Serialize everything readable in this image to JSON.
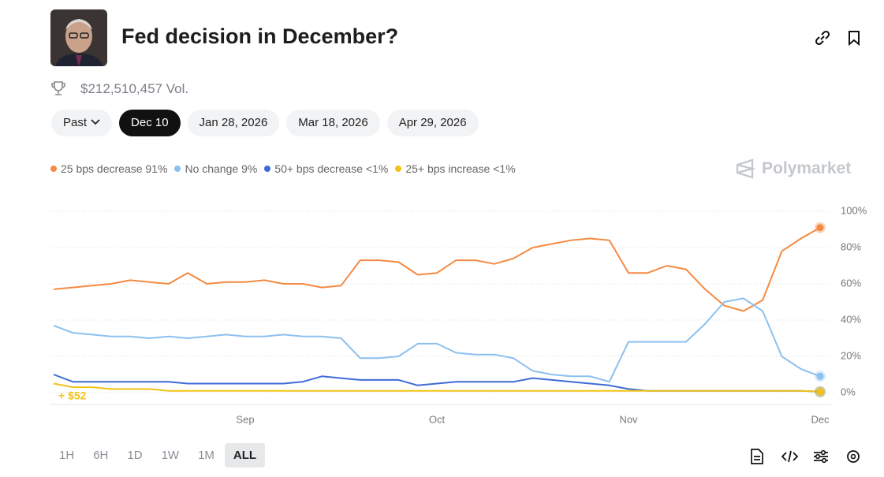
{
  "header": {
    "title": "Fed decision in December?",
    "volume": "$212,510,457 Vol."
  },
  "date_tabs": [
    "Past",
    "Dec 10",
    "Jan 28, 2026",
    "Mar 18, 2026",
    "Apr 29, 2026"
  ],
  "brand": "Polymarket",
  "time_ranges": [
    "1H",
    "6H",
    "1D",
    "1W",
    "1M",
    "ALL"
  ],
  "chart_data": {
    "type": "line",
    "categories": [
      null,
      null,
      null,
      null,
      null,
      null,
      null,
      null,
      null,
      null,
      "Sep",
      null,
      null,
      null,
      null,
      null,
      null,
      null,
      null,
      null,
      "Oct",
      null,
      null,
      null,
      null,
      null,
      null,
      null,
      null,
      null,
      "Nov",
      null,
      null,
      null,
      null,
      null,
      null,
      null,
      null,
      null,
      "Dec"
    ],
    "series": [
      {
        "name": "25 bps decrease",
        "color": "#f58a42",
        "current": {
          "value": 91,
          "label": "91%"
        },
        "values": [
          57,
          58,
          59,
          60,
          62,
          61,
          60,
          66,
          60,
          61,
          61,
          62,
          60,
          60,
          58,
          59,
          73,
          73,
          72,
          65,
          66,
          73,
          73,
          71,
          74,
          80,
          82,
          84,
          85,
          84,
          66,
          66,
          70,
          68,
          57,
          48,
          45,
          51,
          78,
          85,
          91
        ]
      },
      {
        "name": "No change",
        "color": "#8cc0ef",
        "current": {
          "value": 9,
          "label": "9%"
        },
        "values": [
          37,
          33,
          32,
          31,
          31,
          30,
          31,
          30,
          31,
          32,
          31,
          31,
          32,
          31,
          31,
          30,
          19,
          19,
          20,
          27,
          27,
          22,
          21,
          21,
          19,
          12,
          10,
          9,
          9,
          6,
          28,
          28,
          28,
          28,
          38,
          50,
          52,
          45,
          20,
          13,
          9
        ]
      },
      {
        "name": "50+ bps decrease",
        "color": "#3e6bd6",
        "current": {
          "value": 0.5,
          "label": "<1%"
        },
        "values": [
          10,
          6,
          6,
          6,
          6,
          6,
          6,
          5,
          5,
          5,
          5,
          5,
          5,
          6,
          9,
          8,
          7,
          7,
          7,
          4,
          5,
          6,
          6,
          6,
          6,
          8,
          7,
          6,
          5,
          4,
          2,
          1,
          1,
          1,
          1,
          1,
          1,
          1,
          1,
          1,
          0.5
        ]
      },
      {
        "name": "25+ bps increase",
        "color": "#f2c314",
        "current": {
          "value": 0.5,
          "label": "<1%"
        },
        "values": [
          5,
          3,
          3,
          2,
          2,
          2,
          1,
          1,
          1,
          1,
          1,
          1,
          1,
          1,
          1,
          1,
          1,
          1,
          1,
          1,
          1,
          1,
          1,
          1,
          1,
          1,
          1,
          1,
          1,
          1,
          1,
          1,
          1,
          1,
          1,
          1,
          1,
          1,
          1,
          1,
          0.5
        ]
      }
    ],
    "ylim": [
      0,
      100
    ],
    "yticks": [
      {
        "value": 0,
        "label": "0%"
      },
      {
        "value": 20,
        "label": "20%"
      },
      {
        "value": 40,
        "label": "40%"
      },
      {
        "value": 60,
        "label": "60%"
      },
      {
        "value": 80,
        "label": "80%"
      },
      {
        "value": 100,
        "label": "100%"
      }
    ],
    "grid": true,
    "annotation": "+ $52"
  }
}
